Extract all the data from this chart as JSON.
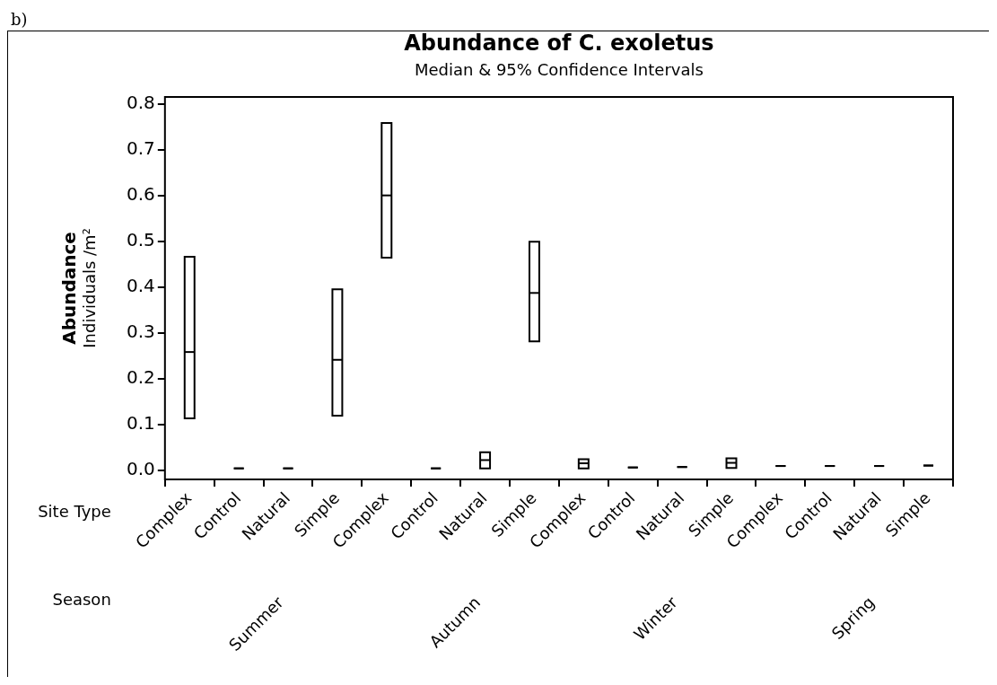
{
  "chart_data": {
    "type": "box",
    "title": "Abundance of C. exoletus",
    "subtitle": "Median & 95% Confidence Intervals",
    "ylabel": "Abundance\nIndividuals /m²",
    "categories": [
      "Complex",
      "Control",
      "Natural",
      "Simple",
      "Complex",
      "Control",
      "Natural",
      "Simple",
      "Complex",
      "Control",
      "Natural",
      "Simple",
      "Complex",
      "Control",
      "Natural",
      "Simple"
    ],
    "boxes": [
      {
        "low": 0.113,
        "q1": 0.113,
        "median": 0.258,
        "q3": 0.466,
        "high": 0.466
      },
      {
        "low": 0.004,
        "q1": 0.004,
        "median": 0.004,
        "q3": 0.004,
        "high": 0.004
      },
      {
        "low": 0.004,
        "q1": 0.004,
        "median": 0.004,
        "q3": 0.004,
        "high": 0.004
      },
      {
        "low": 0.119,
        "q1": 0.119,
        "median": 0.241,
        "q3": 0.395,
        "high": 0.395
      },
      {
        "low": 0.464,
        "q1": 0.464,
        "median": 0.6,
        "q3": 0.758,
        "high": 0.758
      },
      {
        "low": 0.004,
        "q1": 0.004,
        "median": 0.004,
        "q3": 0.004,
        "high": 0.004
      },
      {
        "low": 0.004,
        "q1": 0.004,
        "median": 0.022,
        "q3": 0.039,
        "high": 0.039
      },
      {
        "low": 0.281,
        "q1": 0.281,
        "median": 0.387,
        "q3": 0.499,
        "high": 0.499
      },
      {
        "low": 0.004,
        "q1": 0.004,
        "median": 0.015,
        "q3": 0.024,
        "high": 0.024
      },
      {
        "low": 0.006,
        "q1": 0.006,
        "median": 0.006,
        "q3": 0.006,
        "high": 0.006
      },
      {
        "low": 0.007,
        "q1": 0.007,
        "median": 0.007,
        "q3": 0.007,
        "high": 0.007
      },
      {
        "low": 0.005,
        "q1": 0.005,
        "median": 0.016,
        "q3": 0.026,
        "high": 0.026
      },
      {
        "low": 0.009,
        "q1": 0.009,
        "median": 0.009,
        "q3": 0.009,
        "high": 0.009
      },
      {
        "low": 0.009,
        "q1": 0.009,
        "median": 0.009,
        "q3": 0.009,
        "high": 0.009
      },
      {
        "low": 0.009,
        "q1": 0.009,
        "median": 0.009,
        "q3": 0.009,
        "high": 0.009
      },
      {
        "low": 0.01,
        "q1": 0.01,
        "median": 0.01,
        "q3": 0.01,
        "high": 0.01
      }
    ],
    "color": "#000000",
    "ylim": [
      -0.02,
      0.815
    ],
    "yticks": [
      {
        "value": 0,
        "label": "0.0"
      },
      {
        "value": 0.1,
        "label": "0.1"
      },
      {
        "value": 0.2,
        "label": "0.2"
      },
      {
        "value": 0.3,
        "label": "0.3"
      },
      {
        "value": 0.4,
        "label": "0.4"
      },
      {
        "value": 0.5,
        "label": "0.5"
      },
      {
        "value": 0.6,
        "label": "0.6"
      },
      {
        "value": 0.7,
        "label": "0.7"
      },
      {
        "value": 0.8,
        "label": "0.8"
      }
    ],
    "grid": false,
    "legend": false,
    "annotations": [
      "b)",
      "Site Type",
      "Season",
      "Summer",
      "Autumn",
      "Winter",
      "Spring"
    ]
  }
}
